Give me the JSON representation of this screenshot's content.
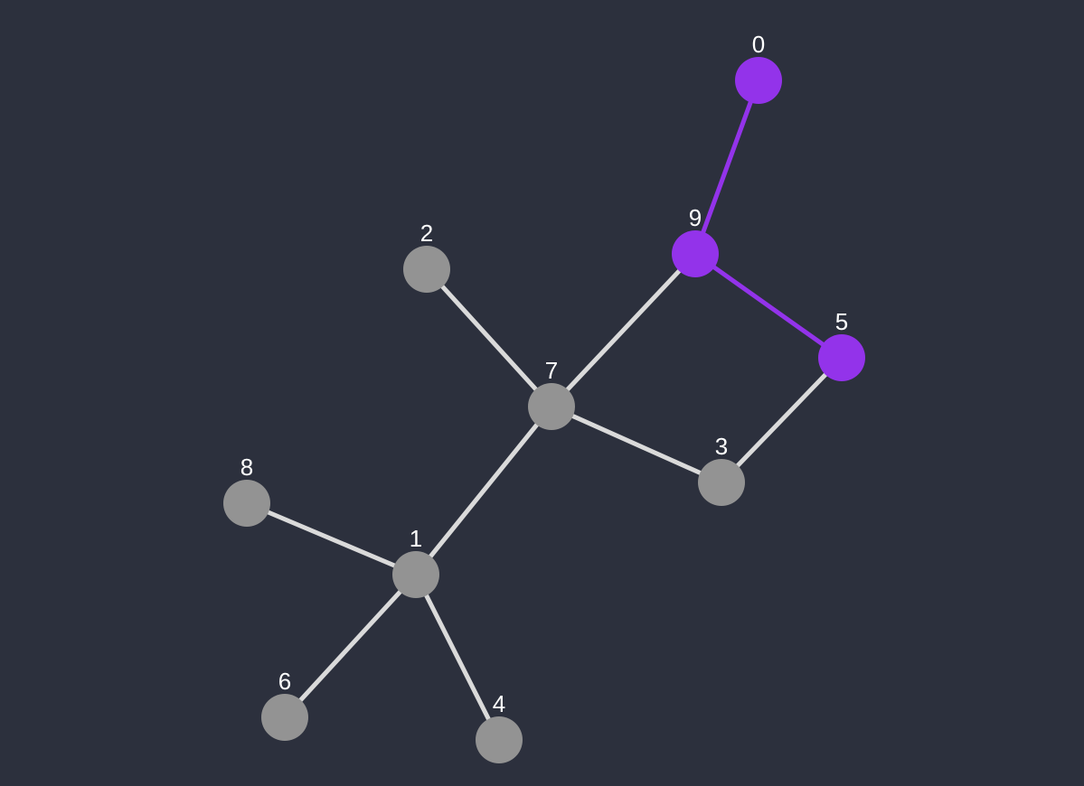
{
  "graph": {
    "colors": {
      "background": "#2c303d",
      "node_default": "#939393",
      "node_highlight": "#9333ea",
      "edge_default": "#dadada",
      "edge_highlight": "#9333ea",
      "label": "#ffffff"
    },
    "nodes": [
      {
        "id": "0",
        "label": "0",
        "highlighted": true
      },
      {
        "id": "1",
        "label": "1",
        "highlighted": false
      },
      {
        "id": "2",
        "label": "2",
        "highlighted": false
      },
      {
        "id": "3",
        "label": "3",
        "highlighted": false
      },
      {
        "id": "4",
        "label": "4",
        "highlighted": false
      },
      {
        "id": "5",
        "label": "5",
        "highlighted": true
      },
      {
        "id": "6",
        "label": "6",
        "highlighted": false
      },
      {
        "id": "7",
        "label": "7",
        "highlighted": false
      },
      {
        "id": "8",
        "label": "8",
        "highlighted": false
      },
      {
        "id": "9",
        "label": "9",
        "highlighted": true
      }
    ],
    "edges": [
      {
        "source": "0",
        "target": "9",
        "highlighted": true
      },
      {
        "source": "9",
        "target": "5",
        "highlighted": true
      },
      {
        "source": "9",
        "target": "7",
        "highlighted": false
      },
      {
        "source": "5",
        "target": "3",
        "highlighted": false
      },
      {
        "source": "7",
        "target": "3",
        "highlighted": false
      },
      {
        "source": "7",
        "target": "2",
        "highlighted": false
      },
      {
        "source": "7",
        "target": "1",
        "highlighted": false
      },
      {
        "source": "1",
        "target": "8",
        "highlighted": false
      },
      {
        "source": "1",
        "target": "6",
        "highlighted": false
      },
      {
        "source": "1",
        "target": "4",
        "highlighted": false
      }
    ]
  }
}
